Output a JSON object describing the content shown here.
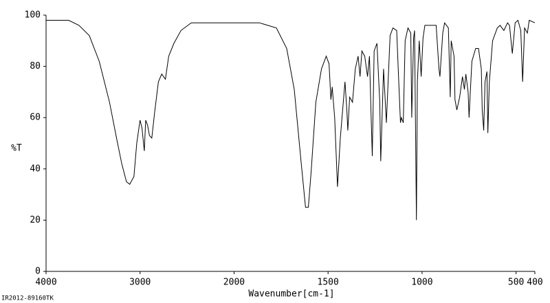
{
  "chart_data": {
    "type": "line",
    "ylabel": "%T",
    "xlabel": "Wavenumber[cm-1]",
    "footer": "IR2012-89160TK",
    "color": "#000000",
    "xlim": [
      4000,
      400
    ],
    "xticks": [
      4000,
      3000,
      2000,
      1500,
      1000,
      500,
      400
    ],
    "ylim": [
      0,
      100
    ],
    "yticks": [
      0,
      20,
      40,
      60,
      80,
      100
    ],
    "x": [
      4000,
      3760,
      3650,
      3540,
      3435,
      3325,
      3250,
      3195,
      3145,
      3110,
      3065,
      3035,
      3000,
      2980,
      2955,
      2940,
      2920,
      2900,
      2875,
      2845,
      2805,
      2770,
      2730,
      2695,
      2640,
      2565,
      2455,
      2310,
      2000,
      1865,
      1775,
      1720,
      1680,
      1645,
      1620,
      1605,
      1590,
      1565,
      1535,
      1510,
      1495,
      1485,
      1478,
      1465,
      1450,
      1435,
      1410,
      1400,
      1395,
      1385,
      1370,
      1355,
      1340,
      1330,
      1320,
      1305,
      1290,
      1280,
      1270,
      1265,
      1255,
      1240,
      1225,
      1220,
      1205,
      1190,
      1170,
      1155,
      1135,
      1125,
      1115,
      1110,
      1100,
      1090,
      1075,
      1060,
      1055,
      1045,
      1040,
      1030,
      1025,
      1015,
      1005,
      995,
      985,
      955,
      925,
      910,
      905,
      890,
      880,
      860,
      850,
      845,
      830,
      825,
      815,
      800,
      785,
      775,
      767,
      755,
      750,
      745,
      735,
      715,
      700,
      685,
      680,
      672,
      665,
      655,
      650,
      642,
      625,
      600,
      585,
      565,
      545,
      535,
      520,
      505,
      490,
      475,
      465,
      455,
      440,
      430,
      400
    ],
    "values": [
      98,
      98,
      96,
      92,
      82,
      66,
      52,
      42,
      35,
      34,
      37,
      50,
      59,
      56,
      47,
      59,
      57,
      53,
      52,
      62,
      74,
      77,
      75,
      84,
      89,
      94,
      97,
      97,
      97,
      97,
      95,
      87,
      71,
      44,
      25,
      25,
      39,
      66,
      79,
      84,
      81,
      67,
      72,
      60,
      33,
      52,
      74,
      63,
      55,
      68,
      66,
      79,
      84,
      76,
      86,
      84,
      76,
      84,
      58,
      45,
      86,
      89,
      66,
      43,
      79,
      58,
      92,
      95,
      94,
      76,
      58,
      60,
      58,
      90,
      95,
      93,
      60,
      91,
      94,
      20,
      74,
      90,
      76,
      91,
      96,
      96,
      96,
      79,
      76,
      93,
      97,
      95,
      68,
      90,
      84,
      67,
      63,
      68,
      76,
      71,
      77,
      70,
      60,
      68,
      82,
      87,
      87,
      79,
      63,
      55,
      74,
      78,
      54,
      74,
      90,
      95,
      96,
      94,
      97,
      96,
      85,
      97,
      98,
      94,
      74,
      95,
      93,
      98,
      97
    ]
  }
}
